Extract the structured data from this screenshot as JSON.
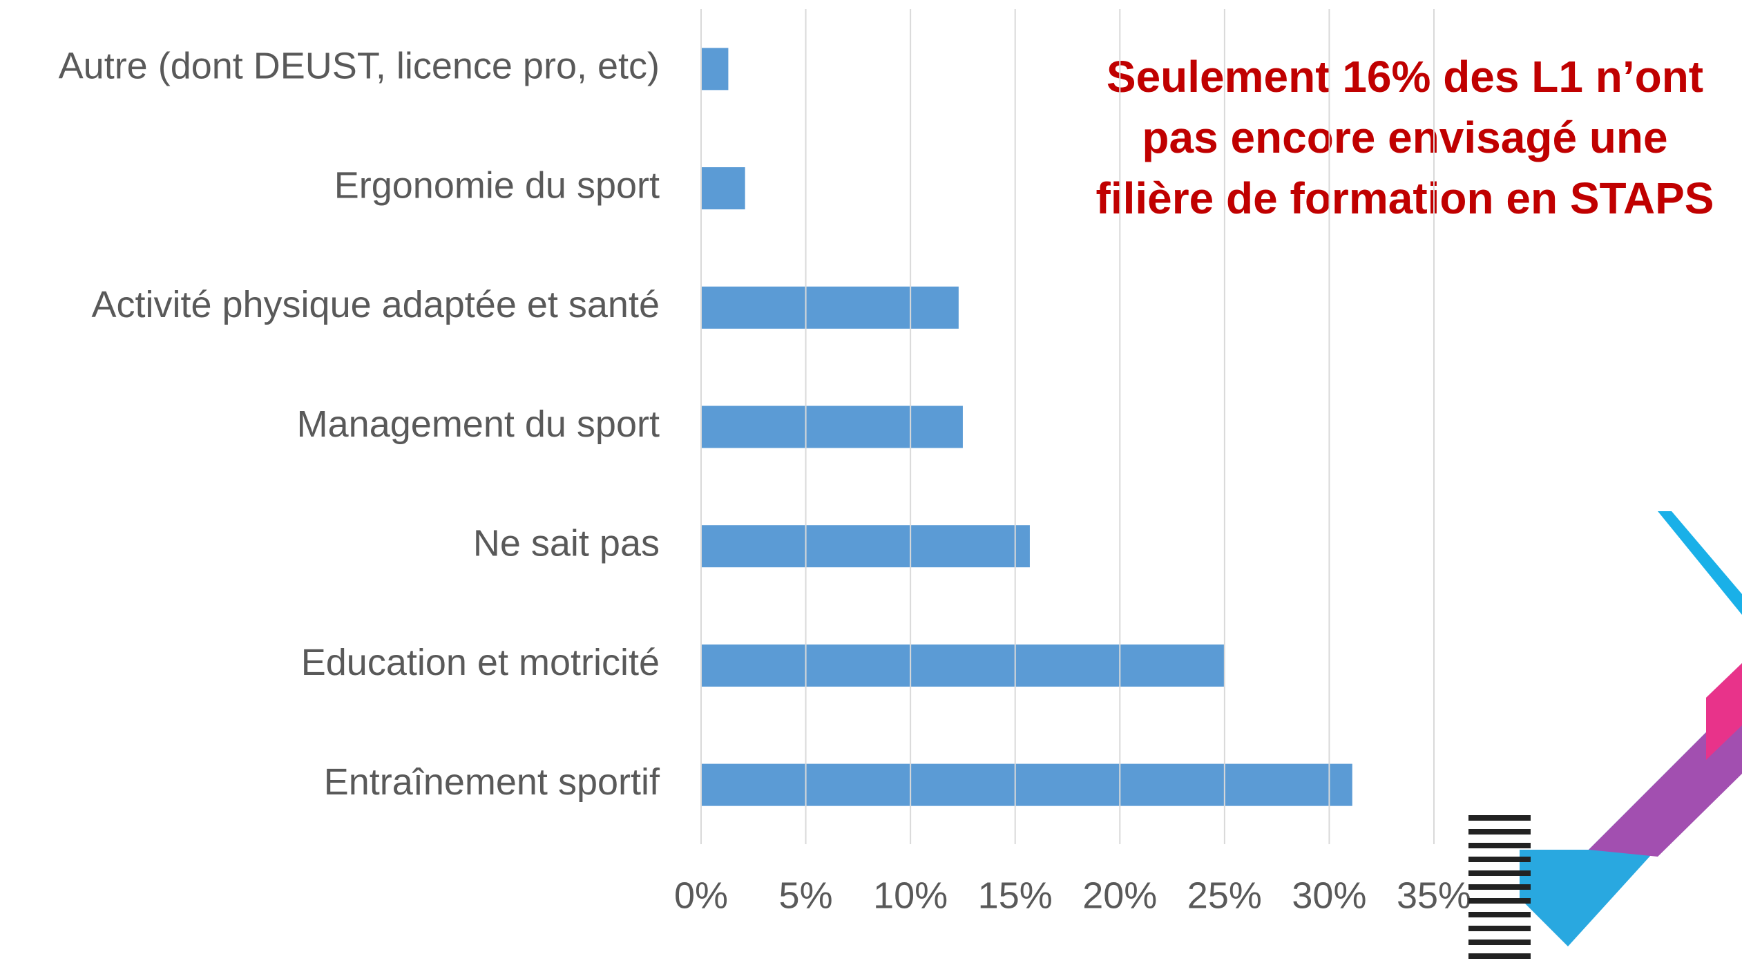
{
  "chart_data": {
    "type": "bar",
    "orientation": "horizontal",
    "categories": [
      "Autre (dont DEUST, licence pro, etc)",
      "Ergonomie du sport",
      "Activité physique adaptée et santé",
      "Management du sport",
      "Ne sait pas",
      "Education et motricité",
      "Entraînement sportif"
    ],
    "values": [
      1.3,
      2.1,
      12.3,
      12.5,
      15.7,
      25.0,
      31.1
    ],
    "color": "#5b9bd5",
    "xlim": [
      0,
      35
    ],
    "xticks": [
      {
        "value": 0,
        "label": "0%"
      },
      {
        "value": 5,
        "label": "5%"
      },
      {
        "value": 10,
        "label": "10%"
      },
      {
        "value": 15,
        "label": "15%"
      },
      {
        "value": 20,
        "label": "20%"
      },
      {
        "value": 25,
        "label": "25%"
      },
      {
        "value": 30,
        "label": "30%"
      },
      {
        "value": 35,
        "label": "35%"
      }
    ],
    "grid": true,
    "annotation": [
      "Seulement 16% des L1 n’ont",
      "pas encore envisagé une",
      "filière de formation en STAPS"
    ]
  }
}
